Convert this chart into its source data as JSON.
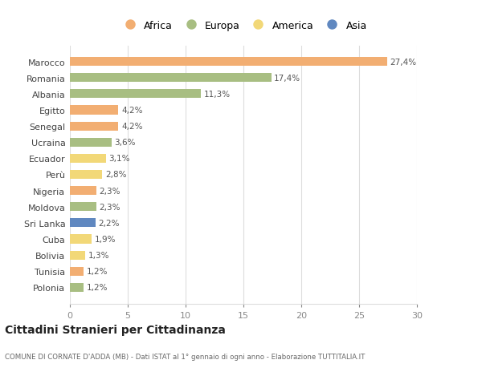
{
  "countries": [
    "Polonia",
    "Tunisia",
    "Bolivia",
    "Cuba",
    "Sri Lanka",
    "Moldova",
    "Nigeria",
    "Perù",
    "Ecuador",
    "Ucraina",
    "Senegal",
    "Egitto",
    "Albania",
    "Romania",
    "Marocco"
  ],
  "values": [
    1.2,
    1.2,
    1.3,
    1.9,
    2.2,
    2.3,
    2.3,
    2.8,
    3.1,
    3.6,
    4.2,
    4.2,
    11.3,
    17.4,
    27.4
  ],
  "continents": [
    "Europa",
    "Africa",
    "America",
    "America",
    "Asia",
    "Europa",
    "Africa",
    "America",
    "America",
    "Europa",
    "Africa",
    "Africa",
    "Europa",
    "Europa",
    "Africa"
  ],
  "colors": {
    "Africa": "#F2AE72",
    "Europa": "#A8BE82",
    "America": "#F2D878",
    "Asia": "#6088C0"
  },
  "title": "Cittadini Stranieri per Cittadinanza",
  "subtitle": "COMUNE DI CORNATE D'ADDA (MB) - Dati ISTAT al 1° gennaio di ogni anno - Elaborazione TUTTITALIA.IT",
  "xlim": [
    0,
    30
  ],
  "xticks": [
    0,
    5,
    10,
    15,
    20,
    25,
    30
  ],
  "legend_order": [
    "Africa",
    "Europa",
    "America",
    "Asia"
  ],
  "background_color": "#ffffff",
  "grid_color": "#dddddd"
}
